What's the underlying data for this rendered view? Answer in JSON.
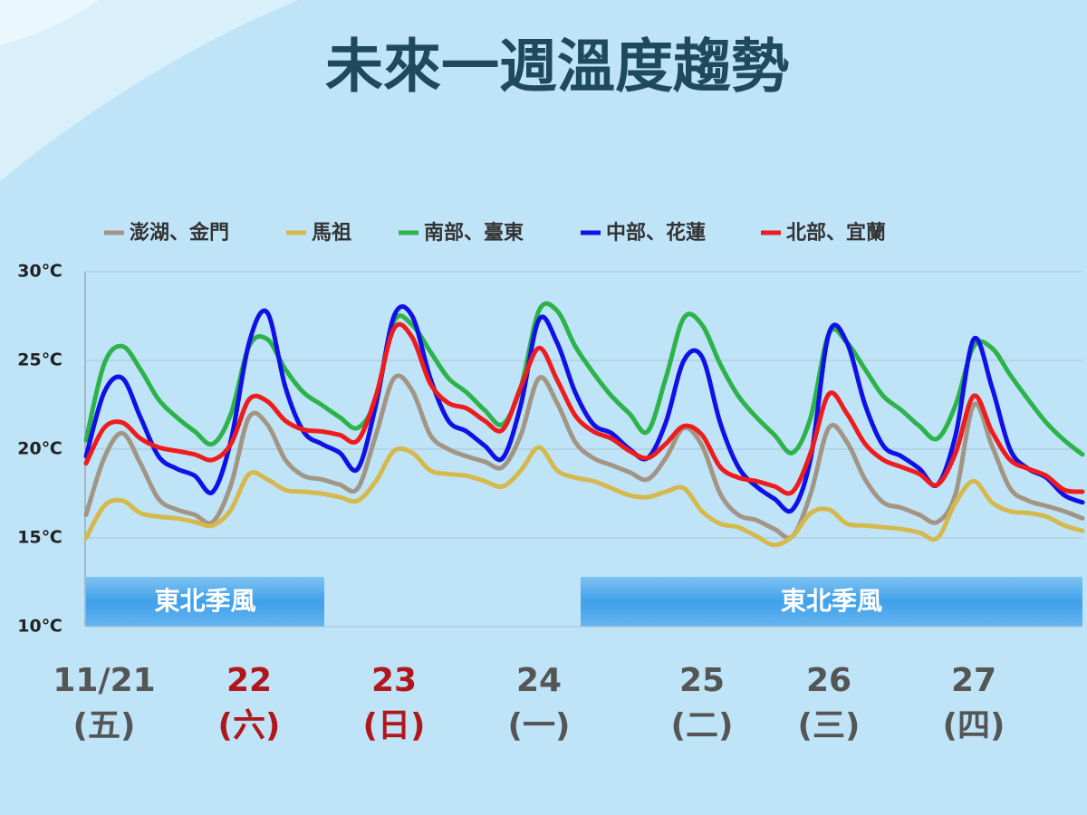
{
  "chart_data": {
    "type": "line",
    "title": "未來一週溫度趨勢",
    "categories": [
      null,
      "11/21",
      null,
      null,
      null,
      null,
      null,
      null,
      null,
      "22",
      null,
      null,
      null,
      null,
      null,
      null,
      null,
      "23",
      null,
      null,
      null,
      null,
      null,
      null,
      null,
      "24",
      null,
      null,
      null,
      null,
      null,
      null,
      null,
      null,
      "25",
      null,
      null,
      null,
      null,
      null,
      null,
      "26",
      null,
      null,
      null,
      null,
      null,
      null,
      null,
      "27",
      null,
      null,
      null,
      null,
      null,
      null
    ],
    "weekdays": [
      null,
      "(五)",
      null,
      null,
      null,
      null,
      null,
      null,
      null,
      "(六)",
      null,
      null,
      null,
      null,
      null,
      null,
      null,
      "(日)",
      null,
      null,
      null,
      null,
      null,
      null,
      null,
      "(一)",
      null,
      null,
      null,
      null,
      null,
      null,
      null,
      null,
      "(二)",
      null,
      null,
      null,
      null,
      null,
      null,
      "(三)",
      null,
      null,
      null,
      null,
      null,
      null,
      null,
      "(四)",
      null,
      null,
      null,
      null,
      null,
      null
    ],
    "label_colors": [
      null,
      "#555555",
      null,
      null,
      null,
      null,
      null,
      null,
      null,
      "#b0171d",
      null,
      null,
      null,
      null,
      null,
      null,
      null,
      "#b0171d",
      null,
      null,
      null,
      null,
      null,
      null,
      null,
      "#555555",
      null,
      null,
      null,
      null,
      null,
      null,
      null,
      null,
      "#555555",
      null,
      null,
      null,
      null,
      null,
      null,
      "#555555",
      null,
      null,
      null,
      null,
      null,
      null,
      null,
      "#555555",
      null,
      null,
      null,
      null,
      null,
      null
    ],
    "series": [
      {
        "name": "澎湖、金門",
        "color": "#a39584",
        "values": [
          16.3,
          19.5,
          20.9,
          19.2,
          17.2,
          16.6,
          16.3,
          15.9,
          18.0,
          21.8,
          21.4,
          19.4,
          18.5,
          18.3,
          18.0,
          17.8,
          20.8,
          24.0,
          23.3,
          20.8,
          20.0,
          19.6,
          19.3,
          19.0,
          20.8,
          24.0,
          22.6,
          20.4,
          19.5,
          19.1,
          18.7,
          18.3,
          19.5,
          21.2,
          20.2,
          17.5,
          16.3,
          16.0,
          15.5,
          15.1,
          17.5,
          21.2,
          20.4,
          18.3,
          17.0,
          16.7,
          16.3,
          15.9,
          17.5,
          22.5,
          20.2,
          17.8,
          17.1,
          16.8,
          16.5,
          16.1
        ]
      },
      {
        "name": "馬祖",
        "color": "#d6b94c",
        "values": [
          15.0,
          16.8,
          17.1,
          16.4,
          16.2,
          16.1,
          15.9,
          15.7,
          16.6,
          18.6,
          18.3,
          17.7,
          17.6,
          17.5,
          17.3,
          17.1,
          18.2,
          19.9,
          19.8,
          18.8,
          18.6,
          18.5,
          18.2,
          17.9,
          18.8,
          20.1,
          18.8,
          18.4,
          18.2,
          17.8,
          17.4,
          17.3,
          17.6,
          17.8,
          16.5,
          15.8,
          15.6,
          15.1,
          14.6,
          15.1,
          16.4,
          16.6,
          15.8,
          15.7,
          15.6,
          15.5,
          15.3,
          15.0,
          17.0,
          18.2,
          17.0,
          16.5,
          16.4,
          16.2,
          15.7,
          15.4
        ]
      },
      {
        "name": "南部、臺東",
        "color": "#2cb34a",
        "values": [
          20.5,
          24.8,
          25.8,
          24.5,
          22.8,
          21.8,
          21.0,
          20.3,
          22.0,
          25.8,
          26.2,
          24.5,
          23.2,
          22.5,
          21.8,
          21.2,
          22.8,
          27.2,
          27.0,
          25.5,
          24.0,
          23.2,
          22.2,
          21.4,
          23.5,
          27.8,
          27.8,
          25.8,
          24.3,
          23.0,
          22.0,
          21.0,
          24.0,
          27.4,
          27.0,
          24.8,
          23.0,
          21.8,
          20.8,
          19.8,
          21.8,
          26.5,
          26.0,
          24.5,
          23.0,
          22.2,
          21.3,
          20.6,
          22.5,
          25.8,
          25.7,
          24.2,
          22.8,
          21.5,
          20.5,
          19.7
        ]
      },
      {
        "name": "中部、花蓮",
        "color": "#1111e6",
        "values": [
          19.6,
          23.2,
          24.0,
          21.8,
          19.6,
          18.9,
          18.5,
          17.6,
          20.5,
          26.0,
          27.7,
          23.5,
          21.0,
          20.3,
          19.8,
          18.9,
          22.5,
          27.5,
          27.5,
          24.0,
          21.6,
          21.0,
          20.2,
          19.5,
          22.5,
          27.3,
          26.0,
          23.2,
          21.4,
          20.9,
          20.0,
          19.5,
          21.5,
          25.0,
          25.2,
          21.5,
          19.0,
          17.9,
          17.2,
          16.6,
          19.5,
          26.5,
          26.0,
          22.5,
          20.2,
          19.6,
          18.9,
          18.0,
          20.8,
          26.2,
          23.5,
          20.0,
          18.9,
          18.4,
          17.4,
          17.0
        ]
      },
      {
        "name": "北部、宜蘭",
        "color": "#ee1c1c",
        "values": [
          19.2,
          21.2,
          21.5,
          20.6,
          20.1,
          19.9,
          19.7,
          19.4,
          20.3,
          22.8,
          22.7,
          21.6,
          21.1,
          21.0,
          20.8,
          20.5,
          23.0,
          26.8,
          26.3,
          23.7,
          22.6,
          22.3,
          21.6,
          21.1,
          23.5,
          25.7,
          23.9,
          21.9,
          21.0,
          20.6,
          19.9,
          19.5,
          20.3,
          21.3,
          20.8,
          19.0,
          18.4,
          18.2,
          17.9,
          17.6,
          19.8,
          23.1,
          22.0,
          20.3,
          19.4,
          19.0,
          18.6,
          18.0,
          19.8,
          23.0,
          21.0,
          19.4,
          18.9,
          18.5,
          17.7,
          17.6
        ]
      }
    ],
    "ylim": [
      10,
      30
    ],
    "yticks": [
      {
        "value": 10,
        "label": "10℃"
      },
      {
        "value": 15,
        "label": "15℃"
      },
      {
        "value": 20,
        "label": "20℃"
      },
      {
        "value": 25,
        "label": "25℃"
      },
      {
        "value": 30,
        "label": "30℃"
      }
    ],
    "grid": true,
    "annotations": [
      "東北季風",
      "東北季風"
    ]
  }
}
